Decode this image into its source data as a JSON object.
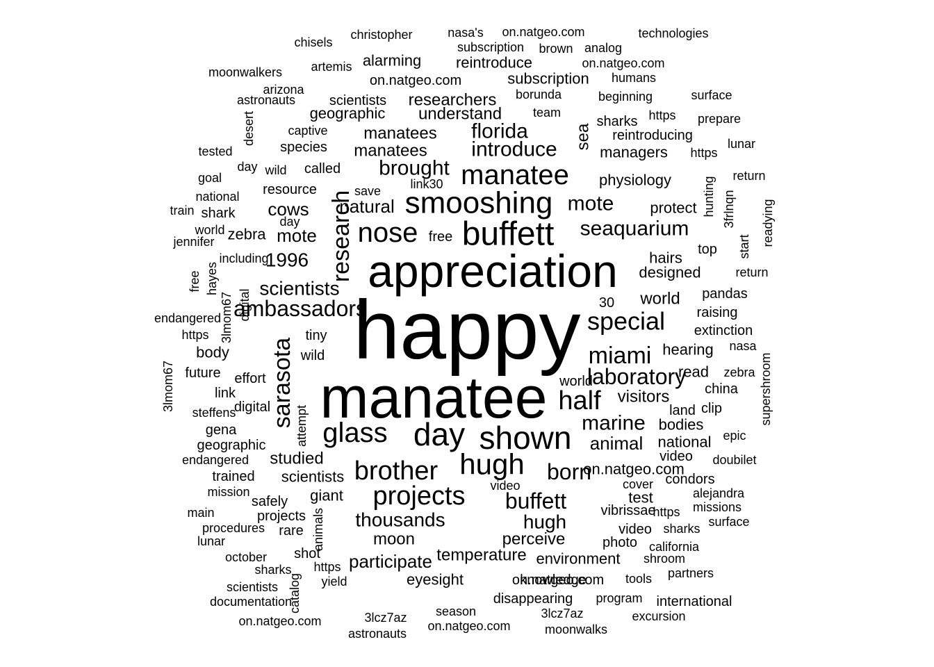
{
  "word_cloud": {
    "color": "#000000",
    "words": [
      "happy",
      "manatee",
      "appreciation",
      "smooshing",
      "buffett",
      "manatee",
      "nose",
      "day",
      "shown",
      "hugh",
      "glass",
      "brother",
      "projects",
      "half",
      "research",
      "special",
      "seaquarium",
      "mote",
      "miami",
      "laboratory",
      "sarasota",
      "buffett",
      "brought",
      "introduce",
      "florida",
      "born",
      "marine",
      "ambassadors",
      "thousands",
      "hugh",
      "1996",
      "scientists",
      "sea",
      "natural",
      "cows",
      "mote",
      "animal",
      "visitors",
      "world",
      "manatees",
      "manatees",
      "understand",
      "researchers",
      "subscription",
      "geographic",
      "alarming",
      "reintroduce",
      "on.natgeo.com",
      "scientists",
      "arizona",
      "astronauts",
      "christopher",
      "chisels",
      "artemis",
      "moonwalkers",
      "nasa's",
      "on.natgeo.com",
      "subscription",
      "brown",
      "analog",
      "on.natgeo.com",
      "technologies",
      "humans",
      "borunda",
      "team",
      "beginning",
      "surface",
      "https",
      "prepare",
      "sharks",
      "reintroducing",
      "managers",
      "https",
      "lunar",
      "tested",
      "desert",
      "captive",
      "species",
      "called",
      "day",
      "wild",
      "goal",
      "national",
      "train",
      "shark",
      "world",
      "jennifer",
      "resource",
      "save",
      "link30",
      "physiology",
      "return",
      "hunting",
      "3frlnqn",
      "readying",
      "start",
      "protect",
      "free",
      "top",
      "hairs",
      "designed",
      "return",
      "30",
      "pandas",
      "raising",
      "extinction",
      "nasa",
      "supershroom",
      "zebra",
      "china",
      "clip",
      "epic",
      "doubilet",
      "hearing",
      "read",
      "land",
      "bodies",
      "national",
      "video",
      "condors",
      "alejandra",
      "missions",
      "surface",
      "california",
      "shroom",
      "partners",
      "international",
      "excursion",
      "moonwalks",
      "3lcz7az",
      "on.natgeo.com",
      "program",
      "tools",
      "on.natgeo.com",
      "disappearing",
      "season",
      "3lcz7az",
      "astronauts",
      "on.natgeo.com",
      "documentation",
      "scientists",
      "catalog",
      "yield",
      "https",
      "sharks",
      "october",
      "lunar",
      "procedures",
      "main",
      "mission",
      "safely",
      "giant",
      "projects",
      "animals",
      "rare",
      "shot",
      "scientists",
      "studied",
      "trained",
      "endangered",
      "geographic",
      "attempt",
      "gena",
      "steffens",
      "digital",
      "link",
      "3lmom67",
      "future",
      "effort",
      "wild",
      "tiny",
      "body",
      "endangered",
      "https",
      "free",
      "hayes",
      "3lmom67",
      "digital",
      "including",
      "zebra",
      "day",
      "moon",
      "participate",
      "eyesight",
      "temperature",
      "perceive",
      "environment",
      "knowledge",
      "on.natgeo.com",
      "cover",
      "video",
      "test",
      "vibrissae",
      "https",
      "video",
      "sharks",
      "photo",
      "world",
      "https"
    ]
  }
}
